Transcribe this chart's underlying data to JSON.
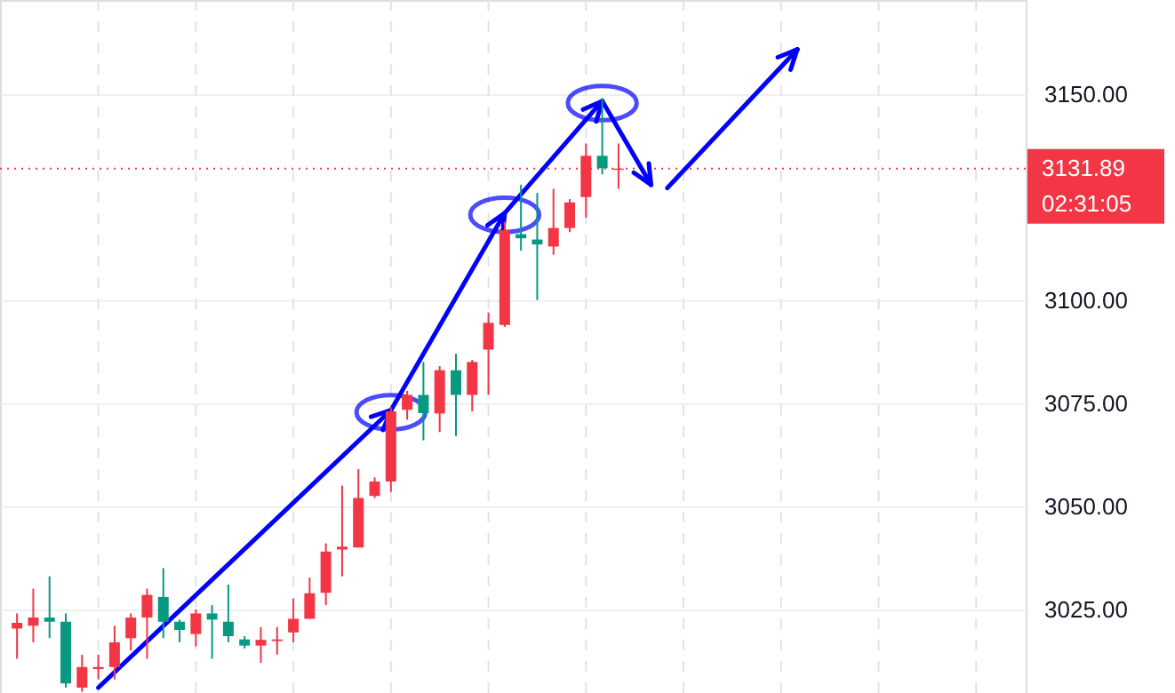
{
  "chart_data": {
    "type": "candlestick",
    "categories": [
      null,
      null,
      null,
      null,
      null,
      null,
      null,
      null,
      null,
      null,
      null,
      null,
      null,
      null,
      null,
      null,
      null,
      null,
      null,
      null,
      null,
      null,
      null,
      null,
      null,
      null,
      null,
      null,
      null,
      null,
      null,
      null,
      null,
      null,
      null,
      null,
      null,
      null,
      null,
      null,
      null,
      null,
      null,
      null,
      null,
      null,
      null,
      null,
      null,
      null,
      null,
      null,
      null,
      null,
      null,
      null,
      null,
      null,
      null,
      null,
      null,
      null
    ],
    "ohlc": [
      [
        3020.3,
        3024,
        3013,
        3021.7
      ],
      [
        3021,
        3030,
        3017,
        3023
      ],
      [
        3023,
        3033,
        3018,
        3022
      ],
      [
        3022,
        3024,
        3006,
        3007
      ],
      [
        3006,
        3014,
        3005,
        3011
      ],
      [
        3010.5,
        3014,
        3008,
        3011
      ],
      [
        3011,
        3021,
        3008,
        3017
      ],
      [
        3018,
        3024,
        3015,
        3023
      ],
      [
        3023,
        3030,
        3013,
        3028.5
      ],
      [
        3028,
        3035,
        3018,
        3022
      ],
      [
        3022,
        3022.5,
        3017,
        3020
      ],
      [
        3019,
        3025,
        3016,
        3024
      ],
      [
        3024,
        3026,
        3013,
        3022.5
      ],
      [
        3022,
        3031,
        3017,
        3018.5
      ],
      [
        3017.7,
        3018.5,
        3015.5,
        3016.2
      ],
      [
        3016.2,
        3020.7,
        3012,
        3017.6
      ],
      [
        3017.3,
        3020.7,
        3014,
        3017.7
      ],
      [
        3019.4,
        3027.6,
        3017,
        3022.7
      ],
      [
        3022.7,
        3032.7,
        3022.7,
        3028.9
      ],
      [
        3029,
        3041,
        3026,
        3039
      ],
      [
        3039.5,
        3055,
        3033,
        3040.2
      ],
      [
        3040,
        3059,
        3040,
        3052
      ],
      [
        3052.5,
        3057,
        3052,
        3056
      ],
      [
        3056,
        3074,
        3053.5,
        3073
      ],
      [
        3073.4,
        3078,
        3071,
        3077
      ],
      [
        3077,
        3085,
        3066,
        3072.6
      ],
      [
        3072.5,
        3084,
        3068,
        3083
      ],
      [
        3083,
        3087,
        3067,
        3077
      ],
      [
        3077,
        3085.5,
        3073,
        3085
      ],
      [
        3088,
        3097,
        3077,
        3094.5
      ],
      [
        3094,
        3119,
        3093.5,
        3117
      ],
      [
        3116,
        3128,
        3112,
        3115
      ],
      [
        3114.7,
        3126,
        3100,
        3113.5
      ],
      [
        3113,
        3127,
        3111,
        3117.5
      ],
      [
        3117.5,
        3124.5,
        3116.5,
        3123.7
      ],
      [
        3125,
        3138,
        3120,
        3135
      ],
      [
        3135,
        3149,
        3130.5,
        3132
      ],
      [
        3131.6,
        3138,
        3127,
        3131.9
      ],
      null,
      null,
      null,
      null,
      null,
      null,
      null,
      null,
      null,
      null,
      null,
      null,
      null,
      null,
      null,
      null,
      null,
      null,
      null,
      null,
      null,
      null,
      null,
      null
    ],
    "colors": [
      "#f23645",
      "#f23645",
      "#089981",
      "#089981",
      "#f23645",
      "#f23645",
      "#f23645",
      "#f23645",
      "#f23645",
      "#089981",
      "#089981",
      "#f23645",
      "#089981",
      "#089981",
      "#089981",
      "#f23645",
      "#f23645",
      "#f23645",
      "#f23645",
      "#f23645",
      "#f23645",
      "#f23645",
      "#f23645",
      "#f23645",
      "#f23645",
      "#089981",
      "#f23645",
      "#089981",
      "#f23645",
      "#f23645",
      "#f23645",
      "#089981",
      "#089981",
      "#f23645",
      "#f23645",
      "#f23645",
      "#089981",
      "#f23645",
      null,
      null,
      null,
      null,
      null,
      null,
      null,
      null,
      null,
      null,
      null,
      null,
      null,
      null,
      null,
      null,
      null,
      null,
      null,
      null,
      null,
      null,
      null,
      null
    ],
    "series": [
      {
        "type": "line",
        "color": "#0000ff",
        "values": [
          null,
          null,
          null,
          null,
          null,
          3006,
          null,
          null,
          null,
          null,
          null,
          null,
          null,
          null,
          null,
          null,
          null,
          null,
          null,
          null,
          null,
          null,
          null,
          3073.3,
          null,
          null,
          null,
          null,
          null,
          null,
          3121.1,
          null,
          null,
          null,
          null,
          null,
          3148.3,
          null,
          null,
          3128.0,
          null,
          null,
          null,
          null,
          null,
          null,
          null,
          null,
          null,
          null,
          null,
          null,
          null,
          null,
          null,
          null,
          null,
          null,
          null,
          null,
          null,
          null
        ]
      },
      {
        "type": "line",
        "color": "#0000ff",
        "values": [
          null,
          null,
          null,
          null,
          null,
          null,
          null,
          null,
          null,
          null,
          null,
          null,
          null,
          null,
          null,
          null,
          null,
          null,
          null,
          null,
          null,
          null,
          null,
          null,
          null,
          null,
          null,
          null,
          null,
          null,
          null,
          null,
          null,
          null,
          null,
          null,
          null,
          null,
          null,
          null,
          3127.2,
          null,
          null,
          null,
          null,
          null,
          null,
          null,
          3160.8,
          null,
          null,
          null,
          null,
          null,
          null,
          null,
          null,
          null,
          null,
          null,
          null,
          null
        ]
      },
      {
        "type": "scatter",
        "marker": "circle",
        "color": "#0000ff",
        "values": [
          null,
          null,
          null,
          null,
          null,
          null,
          null,
          null,
          null,
          null,
          null,
          null,
          null,
          null,
          null,
          null,
          null,
          null,
          null,
          null,
          null,
          null,
          null,
          3072.8,
          null,
          null,
          null,
          null,
          null,
          null,
          3120.7,
          null,
          null,
          null,
          null,
          null,
          3147.8,
          null,
          null,
          null,
          null,
          null,
          null,
          null,
          null,
          null,
          null,
          null,
          null,
          null,
          null,
          null,
          null,
          null,
          null,
          null,
          null,
          null,
          null,
          null,
          null,
          null
        ]
      }
    ],
    "ylim": [
      3004.7,
      3172.8
    ],
    "yticks": [
      {
        "value": 3025,
        "label": "3025.00"
      },
      {
        "value": 3050,
        "label": "3050.00"
      },
      {
        "value": 3075,
        "label": "3075.00"
      },
      {
        "value": 3100,
        "label": "3100.00"
      },
      {
        "value": 3150,
        "label": "3150.00"
      }
    ],
    "ref_lines": [
      {
        "axis": "y",
        "value": 3131.89,
        "label": "3131.89",
        "color": "#f23645",
        "line_style": "dotted"
      }
    ],
    "annotations": [
      "02:31:05"
    ],
    "tick_labels": "y",
    "grid": true
  }
}
